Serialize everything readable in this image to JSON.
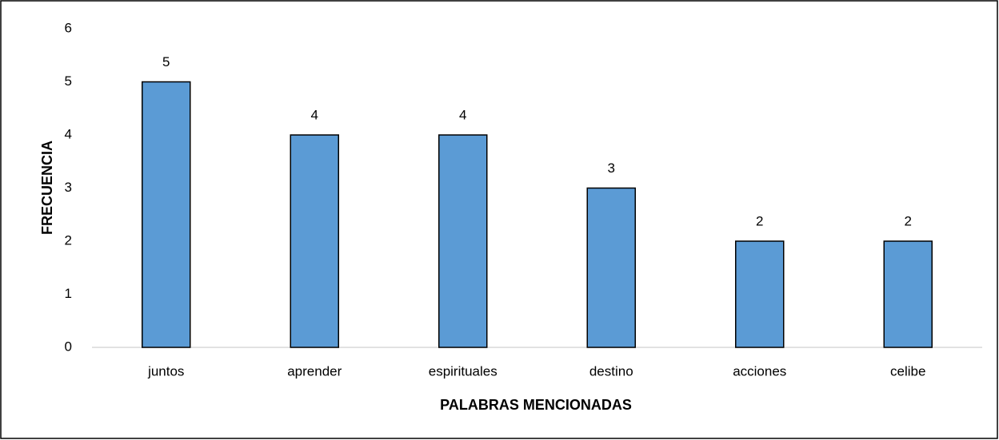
{
  "chart_data": {
    "type": "bar",
    "xlabel": "PALABRAS MENCIONADAS",
    "ylabel": "FRECUENCIA",
    "categories": [
      "juntos",
      "aprender",
      "espirituales",
      "destino",
      "acciones",
      "celibe"
    ],
    "values": [
      5,
      4,
      4,
      3,
      2,
      2
    ],
    "color": "#5b9bd5",
    "ylim": [
      0,
      6
    ],
    "yticks": [
      0,
      1,
      2,
      3,
      4,
      5,
      6
    ],
    "grid": false
  }
}
